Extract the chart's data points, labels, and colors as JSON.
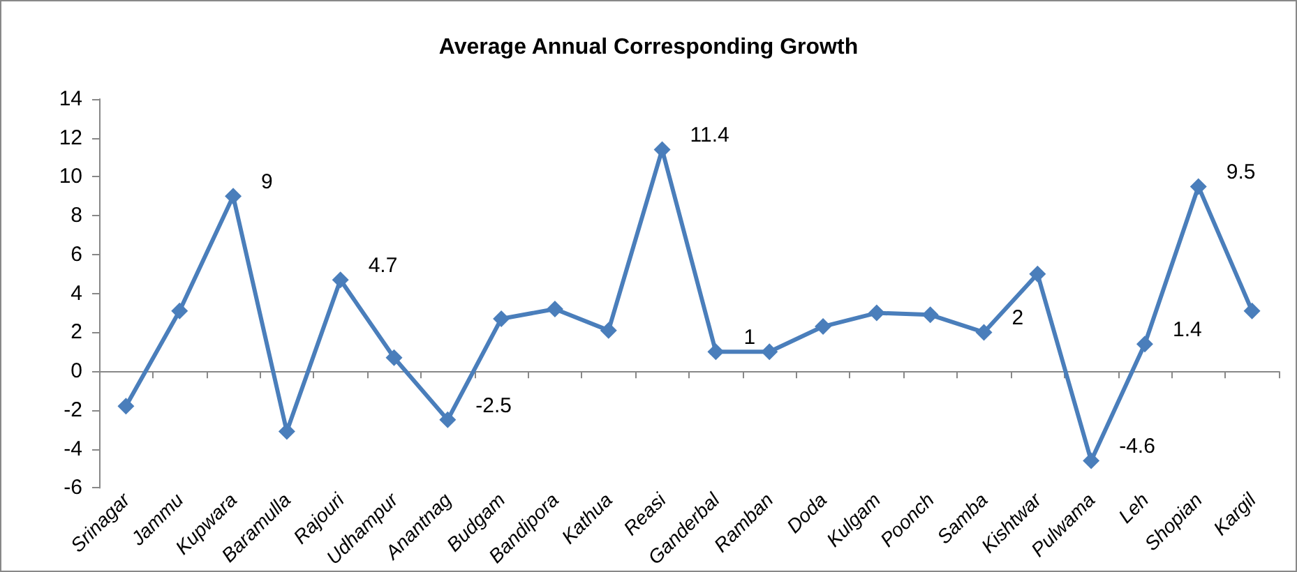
{
  "chart_data": {
    "type": "line",
    "title": "Average Annual Corresponding Growth",
    "categories": [
      "Srinagar",
      "Jammu",
      "Kupwara",
      "Baramulla",
      "Rajouri",
      "Udhampur",
      "Anantnag",
      "Budgam",
      "Bandipora",
      "Kathua",
      "Reasi",
      "Ganderbal",
      "Ramban",
      "Doda",
      "Kulgam",
      "Poonch",
      "Samba",
      "Kishtwar",
      "Pulwama",
      "Leh",
      "Shopian",
      "Kargil"
    ],
    "series": [
      {
        "color": "#4a7ebb",
        "values": [
          -1.8,
          3.1,
          9,
          -3.1,
          4.7,
          0.7,
          -2.5,
          2.7,
          3.2,
          2.1,
          11.4,
          1,
          1,
          2.3,
          3.0,
          2.9,
          2,
          5.0,
          -4.6,
          1.4,
          9.5,
          3.1
        ],
        "value_labels": [
          null,
          null,
          "9",
          null,
          "4.7",
          null,
          "-2.5",
          null,
          null,
          null,
          "11.4",
          "1",
          null,
          null,
          null,
          null,
          "2",
          null,
          "-4.6",
          "1.4",
          "9.5",
          null
        ]
      }
    ],
    "ylim": [
      -6,
      14
    ],
    "yticks": [
      -6,
      -4,
      -2,
      0,
      2,
      4,
      6,
      8,
      10,
      12,
      14
    ],
    "marker": "diamond",
    "line_style": "solid"
  }
}
